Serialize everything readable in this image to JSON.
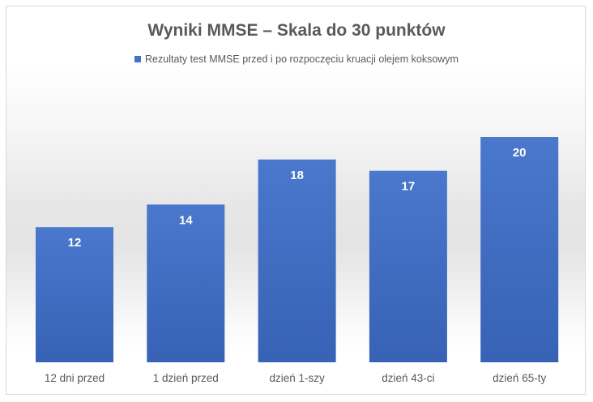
{
  "chart_data": {
    "type": "bar",
    "title": "Wyniki MMSE – Skala do 30 punktów",
    "categories": [
      "12 dni przed",
      "1 dzień przed",
      "dzień 1-szy",
      "dzień 43-ci",
      "dzień 65-ty"
    ],
    "series": [
      {
        "name": "Rezultaty test MMSE przed i po rozpoczęciu kruacji olejem koksowym",
        "values": [
          12,
          14,
          18,
          17,
          20
        ],
        "color": "#4472c4"
      }
    ],
    "ylim": [
      0,
      20
    ],
    "grid": false,
    "legend_position": "top",
    "data_labels": true,
    "xlabel": "",
    "ylabel": ""
  }
}
